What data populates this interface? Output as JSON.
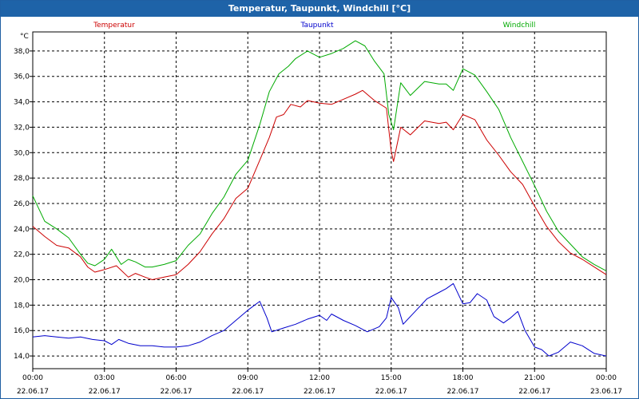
{
  "window": {
    "title": "Temperatur, Taupunkt, Windchill [°C]"
  },
  "chart_data": {
    "type": "line",
    "title": "Temperatur, Taupunkt, Windchill [°C]",
    "ylabel": "°C",
    "ylim": [
      13,
      39.5
    ],
    "xlim": [
      0,
      24
    ],
    "grid": true,
    "legend_position": "top",
    "y_ticks": [
      14,
      16,
      18,
      20,
      22,
      24,
      26,
      28,
      30,
      32,
      34,
      36,
      38
    ],
    "y_tick_labels": [
      "14,0",
      "16,0",
      "18,0",
      "20,0",
      "22,0",
      "24,0",
      "26,0",
      "28,0",
      "30,0",
      "32,0",
      "34,0",
      "36,0",
      "38,0"
    ],
    "x_ticks": [
      {
        "h": 0,
        "time": "00:00",
        "date": "22.06.17"
      },
      {
        "h": 3,
        "time": "03:00",
        "date": "22.06.17"
      },
      {
        "h": 6,
        "time": "06:00",
        "date": "22.06.17"
      },
      {
        "h": 9,
        "time": "09:00",
        "date": "22.06.17"
      },
      {
        "h": 12,
        "time": "12:00",
        "date": "22.06.17"
      },
      {
        "h": 15,
        "time": "15:00",
        "date": "22.06.17"
      },
      {
        "h": 18,
        "time": "18:00",
        "date": "22.06.17"
      },
      {
        "h": 21,
        "time": "21:00",
        "date": "22.06.17"
      },
      {
        "h": 24,
        "time": "00:00",
        "date": "23.06.17"
      }
    ],
    "series": [
      {
        "name": "Temperatur",
        "color": "#cc0000",
        "points": [
          [
            0,
            24.2
          ],
          [
            0.5,
            23.4
          ],
          [
            1,
            22.7
          ],
          [
            1.5,
            22.5
          ],
          [
            2,
            21.8
          ],
          [
            2.3,
            21.0
          ],
          [
            2.6,
            20.6
          ],
          [
            3,
            20.8
          ],
          [
            3.5,
            21.1
          ],
          [
            4,
            20.2
          ],
          [
            4.3,
            20.5
          ],
          [
            4.7,
            20.2
          ],
          [
            5,
            20.0
          ],
          [
            5.5,
            20.2
          ],
          [
            6,
            20.4
          ],
          [
            6.5,
            21.2
          ],
          [
            7,
            22.2
          ],
          [
            7.5,
            23.6
          ],
          [
            8,
            24.8
          ],
          [
            8.5,
            26.4
          ],
          [
            9,
            27.2
          ],
          [
            9.5,
            29.4
          ],
          [
            9.9,
            31.2
          ],
          [
            10.2,
            32.8
          ],
          [
            10.5,
            33.0
          ],
          [
            10.8,
            33.8
          ],
          [
            11.2,
            33.6
          ],
          [
            11.5,
            34.1
          ],
          [
            12,
            33.9
          ],
          [
            12.5,
            33.8
          ],
          [
            13,
            34.2
          ],
          [
            13.5,
            34.6
          ],
          [
            13.8,
            34.9
          ],
          [
            14.3,
            34.1
          ],
          [
            14.8,
            33.5
          ],
          [
            15,
            30.1
          ],
          [
            15.1,
            29.3
          ],
          [
            15.4,
            32.0
          ],
          [
            15.8,
            31.4
          ],
          [
            16.4,
            32.5
          ],
          [
            17,
            32.3
          ],
          [
            17.3,
            32.4
          ],
          [
            17.6,
            31.8
          ],
          [
            18,
            33.0
          ],
          [
            18.5,
            32.6
          ],
          [
            19,
            31.0
          ],
          [
            19.5,
            29.8
          ],
          [
            20,
            28.5
          ],
          [
            20.5,
            27.5
          ],
          [
            21,
            25.8
          ],
          [
            21.5,
            24.2
          ],
          [
            22,
            23.0
          ],
          [
            22.5,
            22.1
          ],
          [
            23,
            21.6
          ],
          [
            23.5,
            21.0
          ],
          [
            24,
            20.4
          ]
        ]
      },
      {
        "name": "Taupunkt",
        "color": "#0000cc",
        "points": [
          [
            0,
            15.5
          ],
          [
            0.5,
            15.6
          ],
          [
            1,
            15.5
          ],
          [
            1.5,
            15.4
          ],
          [
            2,
            15.5
          ],
          [
            2.5,
            15.3
          ],
          [
            3,
            15.2
          ],
          [
            3.3,
            14.9
          ],
          [
            3.6,
            15.3
          ],
          [
            4,
            15.0
          ],
          [
            4.5,
            14.8
          ],
          [
            5,
            14.8
          ],
          [
            5.5,
            14.7
          ],
          [
            6,
            14.7
          ],
          [
            6.5,
            14.8
          ],
          [
            7,
            15.1
          ],
          [
            7.5,
            15.6
          ],
          [
            8,
            16.0
          ],
          [
            8.5,
            16.8
          ],
          [
            9,
            17.6
          ],
          [
            9.5,
            18.3
          ],
          [
            9.8,
            17.0
          ],
          [
            10,
            15.9
          ],
          [
            10.5,
            16.2
          ],
          [
            11,
            16.5
          ],
          [
            11.5,
            16.9
          ],
          [
            12,
            17.2
          ],
          [
            12.3,
            16.8
          ],
          [
            12.5,
            17.3
          ],
          [
            13,
            16.8
          ],
          [
            13.5,
            16.4
          ],
          [
            14,
            15.9
          ],
          [
            14.5,
            16.3
          ],
          [
            14.8,
            17.0
          ],
          [
            15,
            18.6
          ],
          [
            15.3,
            17.8
          ],
          [
            15.5,
            16.5
          ],
          [
            16,
            17.5
          ],
          [
            16.5,
            18.5
          ],
          [
            17,
            19.0
          ],
          [
            17.3,
            19.3
          ],
          [
            17.6,
            19.7
          ],
          [
            18,
            18.1
          ],
          [
            18.3,
            18.2
          ],
          [
            18.6,
            18.9
          ],
          [
            19,
            18.4
          ],
          [
            19.3,
            17.1
          ],
          [
            19.7,
            16.6
          ],
          [
            20,
            17.0
          ],
          [
            20.3,
            17.5
          ],
          [
            20.6,
            16.0
          ],
          [
            21,
            14.7
          ],
          [
            21.3,
            14.5
          ],
          [
            21.6,
            14.0
          ],
          [
            22,
            14.3
          ],
          [
            22.5,
            15.1
          ],
          [
            23,
            14.8
          ],
          [
            23.5,
            14.2
          ],
          [
            24,
            14.0
          ]
        ]
      },
      {
        "name": "Windchill",
        "color": "#00aa00",
        "points": [
          [
            0,
            26.6
          ],
          [
            0.5,
            24.6
          ],
          [
            1,
            24.0
          ],
          [
            1.5,
            23.3
          ],
          [
            2,
            22.0
          ],
          [
            2.3,
            21.3
          ],
          [
            2.6,
            21.1
          ],
          [
            3,
            21.6
          ],
          [
            3.3,
            22.4
          ],
          [
            3.7,
            21.2
          ],
          [
            4,
            21.6
          ],
          [
            4.3,
            21.4
          ],
          [
            4.7,
            21.0
          ],
          [
            5,
            21.0
          ],
          [
            5.5,
            21.2
          ],
          [
            6,
            21.5
          ],
          [
            6.5,
            22.7
          ],
          [
            7,
            23.6
          ],
          [
            7.5,
            25.2
          ],
          [
            8,
            26.5
          ],
          [
            8.5,
            28.3
          ],
          [
            9,
            29.4
          ],
          [
            9.5,
            32.2
          ],
          [
            9.9,
            34.8
          ],
          [
            10.3,
            36.2
          ],
          [
            10.7,
            36.8
          ],
          [
            11,
            37.4
          ],
          [
            11.5,
            38.0
          ],
          [
            12,
            37.5
          ],
          [
            12.5,
            37.8
          ],
          [
            13,
            38.2
          ],
          [
            13.5,
            38.8
          ],
          [
            13.9,
            38.4
          ],
          [
            14.3,
            37.2
          ],
          [
            14.7,
            36.2
          ],
          [
            14.9,
            33.0
          ],
          [
            15.1,
            31.8
          ],
          [
            15.4,
            35.5
          ],
          [
            15.8,
            34.5
          ],
          [
            16.4,
            35.6
          ],
          [
            17,
            35.4
          ],
          [
            17.3,
            35.4
          ],
          [
            17.6,
            34.9
          ],
          [
            18,
            36.6
          ],
          [
            18.5,
            36.1
          ],
          [
            19,
            34.8
          ],
          [
            19.5,
            33.4
          ],
          [
            20,
            31.2
          ],
          [
            20.5,
            29.3
          ],
          [
            21,
            27.4
          ],
          [
            21.5,
            25.4
          ],
          [
            22,
            23.8
          ],
          [
            22.5,
            22.8
          ],
          [
            23,
            21.8
          ],
          [
            23.5,
            21.2
          ],
          [
            24,
            20.7
          ]
        ]
      }
    ]
  }
}
